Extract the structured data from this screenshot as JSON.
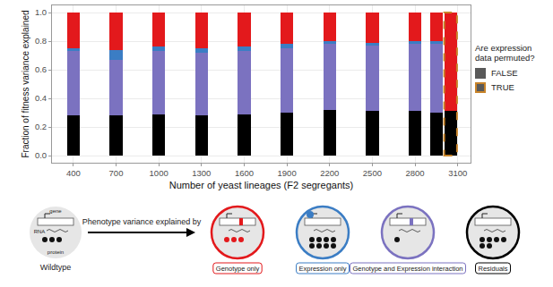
{
  "chart_data": {
    "type": "bar",
    "stacked": true,
    "xlabel": "Number of yeast lineages (F2 segregants)",
    "ylabel": "Fraction of fitness variance explained",
    "x": [
      400,
      700,
      1000,
      1300,
      1600,
      1900,
      2200,
      2500,
      2800,
      2950,
      3050
    ],
    "permuted": [
      "FALSE",
      "FALSE",
      "FALSE",
      "FALSE",
      "FALSE",
      "FALSE",
      "FALSE",
      "FALSE",
      "FALSE",
      "FALSE",
      "TRUE"
    ],
    "legend_title": "Are expression data permuted?",
    "series": [
      {
        "name": "Residuals",
        "color": "#000000",
        "values": [
          0.28,
          0.28,
          0.29,
          0.28,
          0.29,
          0.3,
          0.32,
          0.31,
          0.31,
          0.3,
          0.31
        ]
      },
      {
        "name": "Genotype and Expression interaction",
        "color": "#7b72c0",
        "values": [
          0.45,
          0.39,
          0.44,
          0.44,
          0.44,
          0.45,
          0.46,
          0.46,
          0.47,
          0.48,
          0
        ]
      },
      {
        "name": "Expression only",
        "color": "#3b7dc4",
        "values": [
          0.02,
          0.07,
          0.03,
          0.03,
          0.03,
          0.03,
          0.02,
          0.02,
          0.02,
          0.02,
          0
        ]
      },
      {
        "name": "Genotype only",
        "color": "#e3191c",
        "values": [
          0.25,
          0.26,
          0.24,
          0.25,
          0.24,
          0.22,
          0.2,
          0.21,
          0.2,
          0.2,
          0.69
        ]
      }
    ],
    "xlim": [
      250,
      3190
    ],
    "xticks": [
      400,
      700,
      1000,
      1300,
      1600,
      1900,
      2200,
      2500,
      2800,
      3100
    ],
    "ylim": [
      -0.05,
      1.05
    ],
    "yticks": [
      {
        "value": 0,
        "label": "0.0"
      },
      0.2,
      0.4,
      0.6,
      0.8,
      {
        "value": 1,
        "label": "1.0"
      }
    ],
    "grid": true
  },
  "diagram": {
    "arrow_label": "Phenotype variance explained by",
    "wildtype_label": "Wildtype",
    "gene_label": "gene",
    "rna_label": "RNA",
    "protein_label": "protein"
  }
}
